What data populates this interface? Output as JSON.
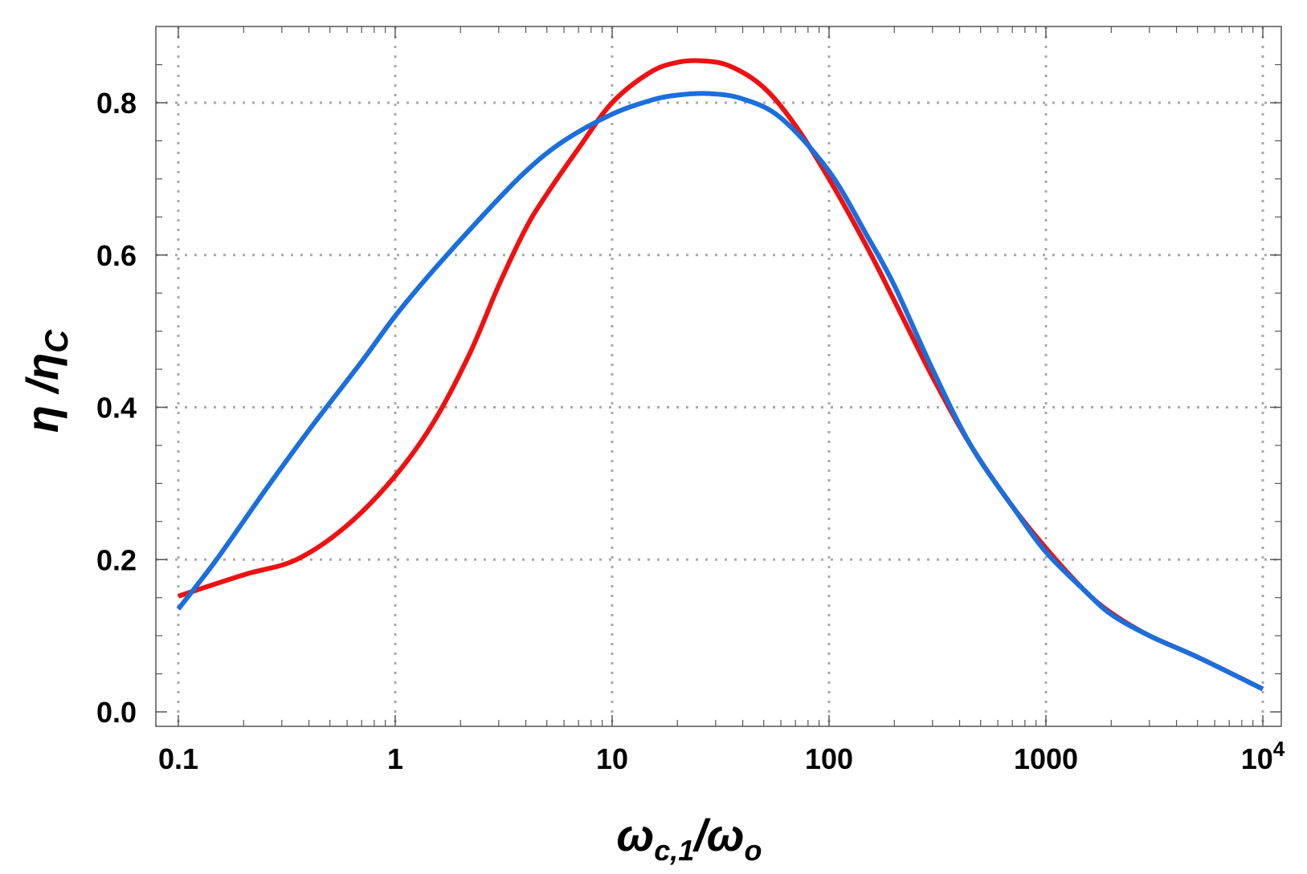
{
  "chart_data": {
    "type": "line",
    "xscale": "log",
    "xlim": [
      0.1,
      10000
    ],
    "ylim": [
      -0.02,
      0.9
    ],
    "xticks": [
      {
        "value": 0.1,
        "label": "0.1"
      },
      {
        "value": 1,
        "label": "1"
      },
      {
        "value": 10,
        "label": "10"
      },
      {
        "value": 100,
        "label": "100"
      },
      {
        "value": 1000,
        "label": "1000"
      },
      {
        "value": 10000,
        "label": "10",
        "sup": "4"
      }
    ],
    "yticks": [
      {
        "value": 0.0,
        "label": "0.0"
      },
      {
        "value": 0.2,
        "label": "0.2"
      },
      {
        "value": 0.4,
        "label": "0.4"
      },
      {
        "value": 0.6,
        "label": "0.6"
      },
      {
        "value": 0.8,
        "label": "0.8"
      }
    ],
    "grid": true,
    "xlabel": {
      "main": "ω",
      "sub1": "c,1",
      "mid": "/ω",
      "sub2": "o"
    },
    "ylabel": {
      "main": "η /η",
      "sub": "C"
    },
    "series": [
      {
        "color": "#ee1111",
        "x": [
          0.1,
          0.2,
          0.35,
          0.6,
          1,
          1.5,
          2.2,
          3,
          4,
          5,
          7,
          10,
          15,
          20,
          26,
          35,
          50,
          70,
          100,
          150,
          200,
          300,
          450,
          700,
          1000,
          1500,
          2000,
          3000,
          5000,
          10000
        ],
        "y": [
          0.152,
          0.18,
          0.2,
          0.245,
          0.31,
          0.38,
          0.47,
          0.56,
          0.635,
          0.68,
          0.74,
          0.8,
          0.84,
          0.853,
          0.855,
          0.848,
          0.82,
          0.77,
          0.7,
          0.61,
          0.54,
          0.44,
          0.35,
          0.27,
          0.215,
          0.16,
          0.13,
          0.1,
          0.072,
          0.03
        ]
      },
      {
        "color": "#1a6fdc",
        "x": [
          0.1,
          0.15,
          0.25,
          0.4,
          0.7,
          1,
          1.5,
          2.5,
          4,
          6,
          10,
          15,
          20,
          28,
          40,
          60,
          100,
          150,
          200,
          300,
          450,
          700,
          1000,
          1500,
          2000,
          3000,
          5000,
          10000
        ],
        "y": [
          0.135,
          0.2,
          0.29,
          0.37,
          0.46,
          0.52,
          0.58,
          0.65,
          0.71,
          0.75,
          0.785,
          0.803,
          0.81,
          0.812,
          0.805,
          0.78,
          0.71,
          0.625,
          0.56,
          0.45,
          0.35,
          0.27,
          0.21,
          0.16,
          0.128,
          0.1,
          0.072,
          0.03
        ]
      }
    ]
  }
}
